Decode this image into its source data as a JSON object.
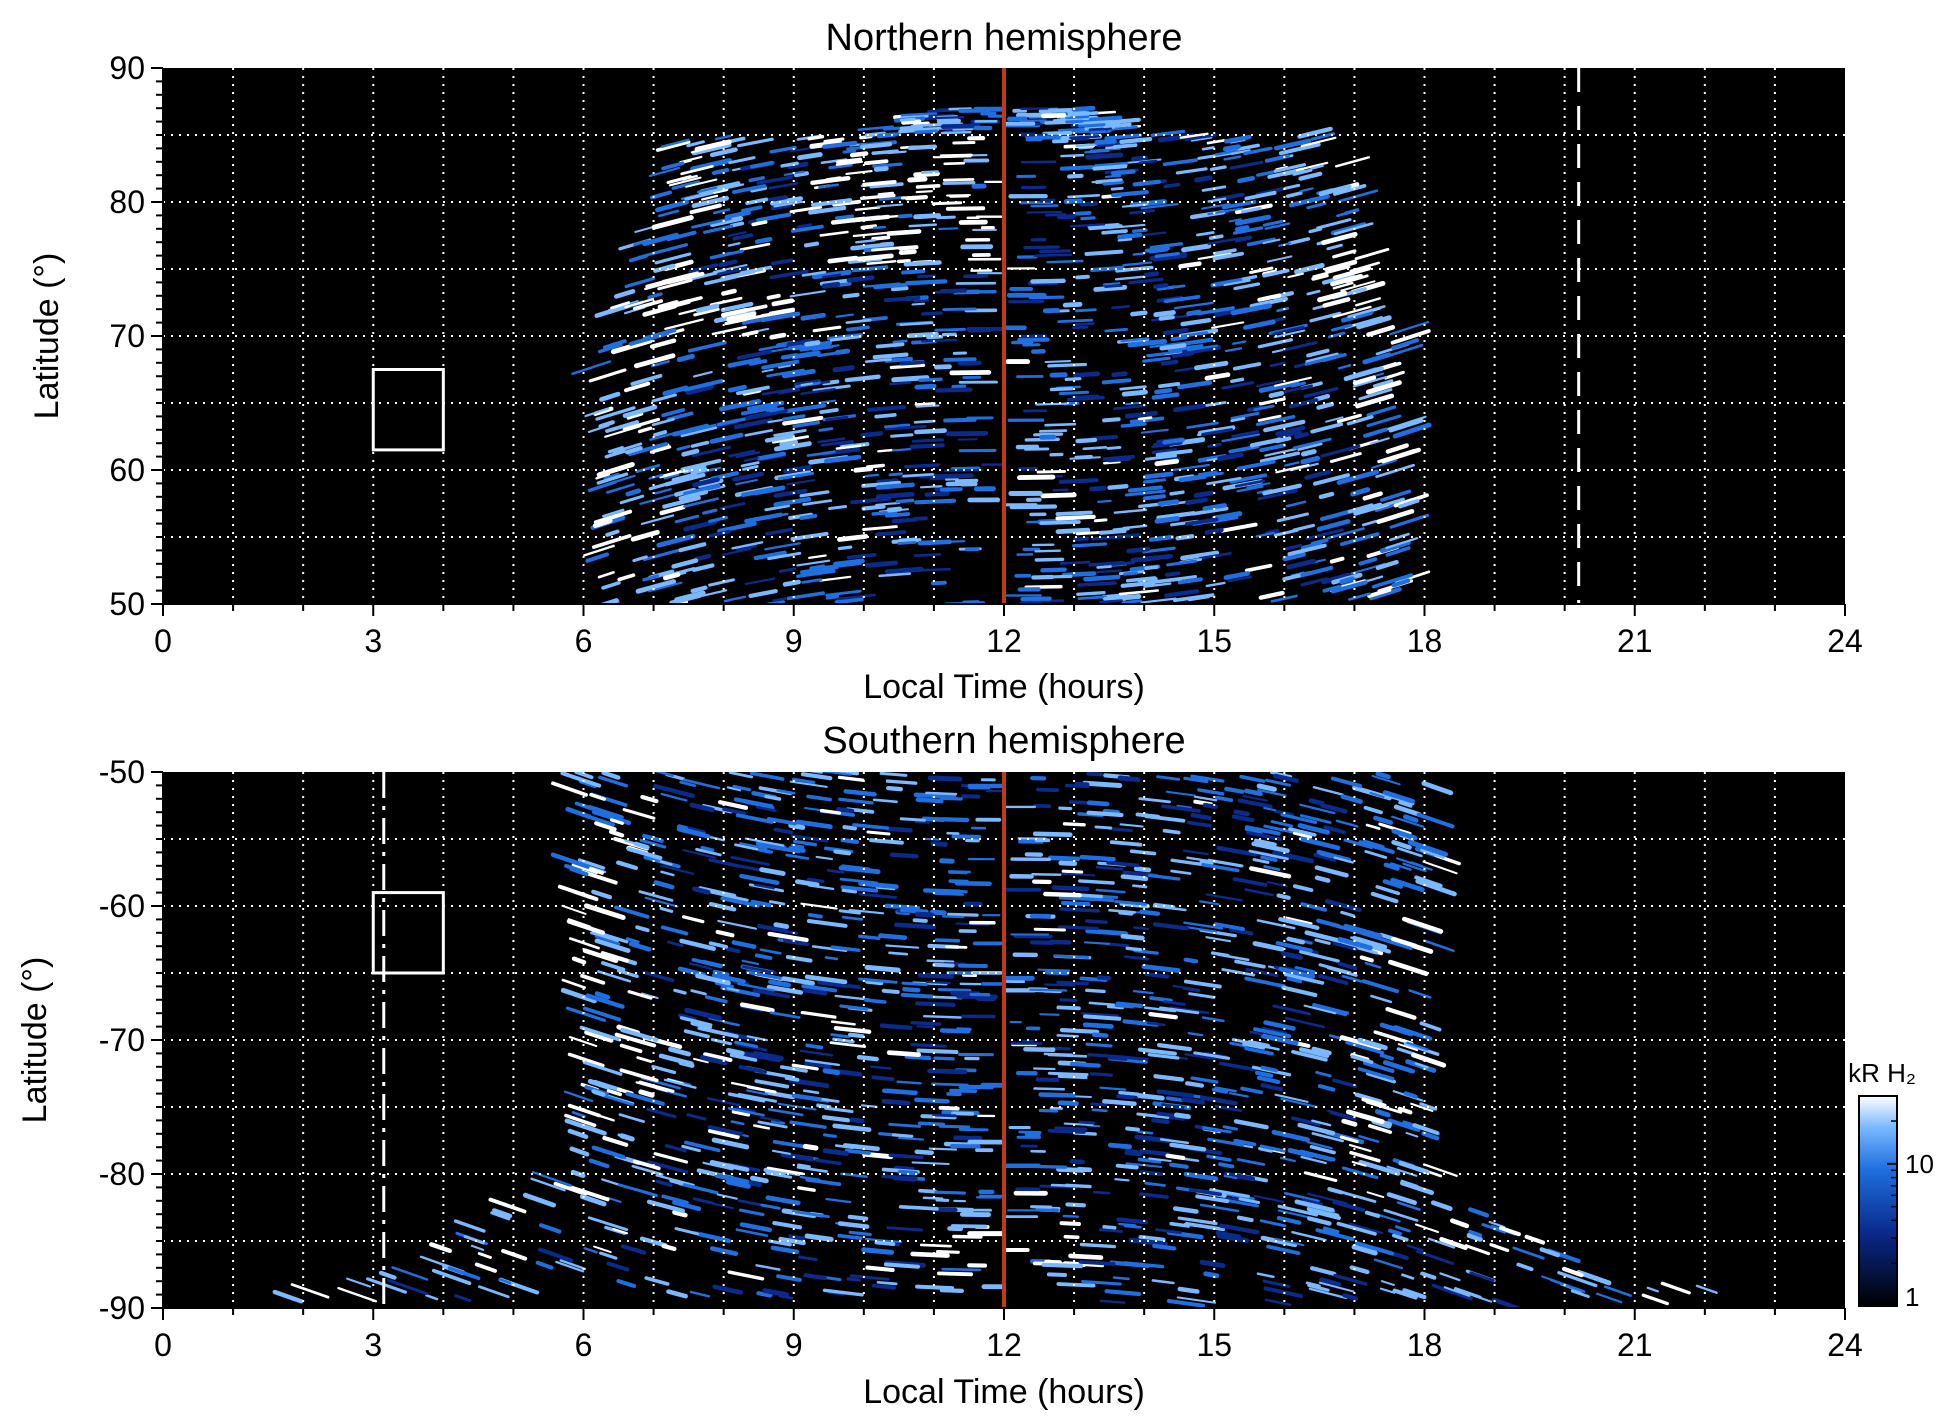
{
  "chart_data": [
    {
      "type": "heatmap",
      "title": "Northern hemisphere",
      "xlabel": "Local Time (hours)",
      "ylabel": "Latitude (°)",
      "xlim": [
        0,
        24
      ],
      "ylim": [
        50,
        90
      ],
      "xticks": [
        "0",
        "3",
        "6",
        "9",
        "12",
        "15",
        "18",
        "21",
        "24"
      ],
      "yticks": [
        "50",
        "60",
        "70",
        "80",
        "90"
      ],
      "grid": true,
      "coverage": {
        "lt_start": 6.5,
        "lt_end": 17.8,
        "lat_edge": 50,
        "lat_top_noon": 87,
        "lat_top_flanks": 85
      },
      "bright_features": [
        {
          "lt": [
            9.5,
            12.0
          ],
          "lat": [
            75,
            85
          ]
        },
        {
          "lt": [
            7.3,
            9.0
          ],
          "lat": [
            70,
            75
          ]
        },
        {
          "lt": [
            15.5,
            17.3
          ],
          "lat": [
            72,
            76
          ]
        }
      ],
      "overlays": {
        "noon_line_lt": 12,
        "dashed_line_lt": 20.2,
        "box": {
          "lt": [
            3,
            4
          ],
          "lat": [
            61.5,
            67.5
          ]
        }
      }
    },
    {
      "type": "heatmap",
      "title": "Southern hemisphere",
      "xlabel": "Local Time (hours)",
      "ylabel": "Latitude (°)",
      "xlim": [
        0,
        24
      ],
      "ylim": [
        -90,
        -50
      ],
      "xticks": [
        "0",
        "3",
        "6",
        "9",
        "12",
        "15",
        "18",
        "21",
        "24"
      ],
      "yticks": [
        "-90",
        "-80",
        "-70",
        "-60",
        "-50"
      ],
      "grid": true,
      "coverage": {
        "lt_start": 6.0,
        "lt_end": 18.3,
        "lat_edge": -50,
        "lat_pole": -90
      },
      "bright_features": [
        {
          "lt": [
            6.0,
            8.0
          ],
          "lat": [
            -74,
            -70
          ]
        },
        {
          "lt": [
            11.0,
            13.0
          ],
          "lat": [
            -89,
            -83
          ]
        }
      ],
      "overlays": {
        "noon_line_lt": 12,
        "dashdot_line_lt": 3.15,
        "box": {
          "lt": [
            3,
            4
          ],
          "lat": [
            -65,
            -59
          ]
        }
      }
    }
  ],
  "colorbar": {
    "label": "kR H₂",
    "ticks": [
      "1",
      "10"
    ],
    "scale": "log",
    "range": [
      1,
      30
    ],
    "colors": [
      "#000000",
      "#0a2a8c",
      "#1f6fe0",
      "#7ab8ff",
      "#ffffff"
    ]
  },
  "colors": {
    "background": "#000000",
    "noon_line": "#c0391b",
    "grid": "#ffffff",
    "overlay": "#ffffff"
  }
}
